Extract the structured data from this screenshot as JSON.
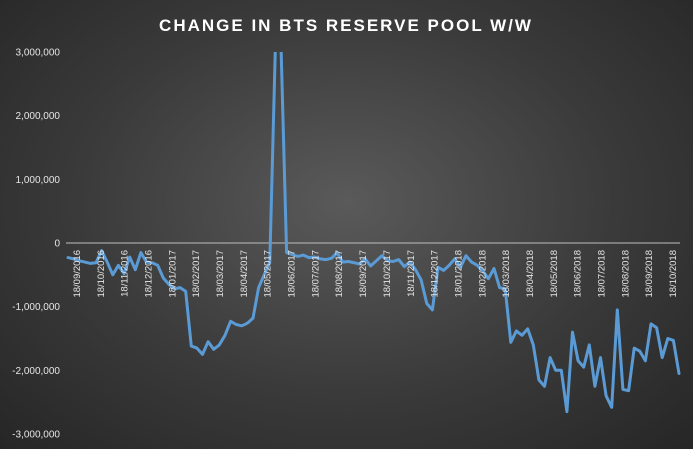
{
  "chart_data": {
    "type": "line",
    "title": "CHANGE IN BTS RESERVE POOL W/W",
    "xlabel": "",
    "ylabel": "",
    "ylim": [
      -3000000,
      3000000
    ],
    "y_ticks": [
      3000000,
      2000000,
      1000000,
      0,
      -1000000,
      -2000000,
      -3000000
    ],
    "y_tick_labels": [
      "3,000,000",
      "2,000,000",
      "1,000,000",
      "0",
      "-1,000,000",
      "-2,000,000",
      "-3,000,000"
    ],
    "x_tick_labels": [
      "18/09/2016",
      "18/10/2016",
      "18/11/2016",
      "18/12/2016",
      "18/01/2017",
      "18/02/2017",
      "18/03/2017",
      "18/04/2017",
      "18/05/2017",
      "18/06/2017",
      "18/07/2017",
      "18/08/2017",
      "18/09/2017",
      "18/10/2017",
      "18/11/2017",
      "18/12/2017",
      "18/01/2018",
      "18/02/2018",
      "18/03/2018",
      "18/04/2018",
      "18/05/2018",
      "18/06/2018",
      "18/07/2018",
      "18/08/2018",
      "18/09/2018",
      "18/10/2018"
    ],
    "grid": false,
    "legend": "none",
    "color": "#5b9bd5",
    "series": [
      {
        "values": [
          -230000,
          -250000,
          -280000,
          -300000,
          -320000,
          -310000,
          -120000,
          -300000,
          -500000,
          -350000,
          -480000,
          -220000,
          -420000,
          -150000,
          -300000,
          -310000,
          -350000,
          -550000,
          -650000,
          -720000,
          -700000,
          -760000,
          -1620000,
          -1650000,
          -1750000,
          -1550000,
          -1670000,
          -1600000,
          -1450000,
          -1230000,
          -1280000,
          -1300000,
          -1260000,
          -1180000,
          -700000,
          -500000,
          -300000,
          3100000,
          3100000,
          -150000,
          -180000,
          -210000,
          -190000,
          -230000,
          -220000,
          -250000,
          -260000,
          -240000,
          -150000,
          -300000,
          -290000,
          -310000,
          -330000,
          -250000,
          -360000,
          -280000,
          -200000,
          -280000,
          -290000,
          -260000,
          -370000,
          -300000,
          -420000,
          -580000,
          -950000,
          -1050000,
          -380000,
          -430000,
          -350000,
          -250000,
          -380000,
          -200000,
          -300000,
          -350000,
          -440000,
          -560000,
          -400000,
          -700000,
          -720000,
          -1560000,
          -1380000,
          -1450000,
          -1350000,
          -1600000,
          -2150000,
          -2250000,
          -1800000,
          -2000000,
          -2000000,
          -2650000,
          -1400000,
          -1850000,
          -1950000,
          -1600000,
          -2250000,
          -1800000,
          -2400000,
          -2580000,
          -1050000,
          -2300000,
          -2320000,
          -1650000,
          -1700000,
          -1850000,
          -1270000,
          -1330000,
          -1800000,
          -1500000,
          -1530000,
          -2050000
        ]
      }
    ]
  }
}
